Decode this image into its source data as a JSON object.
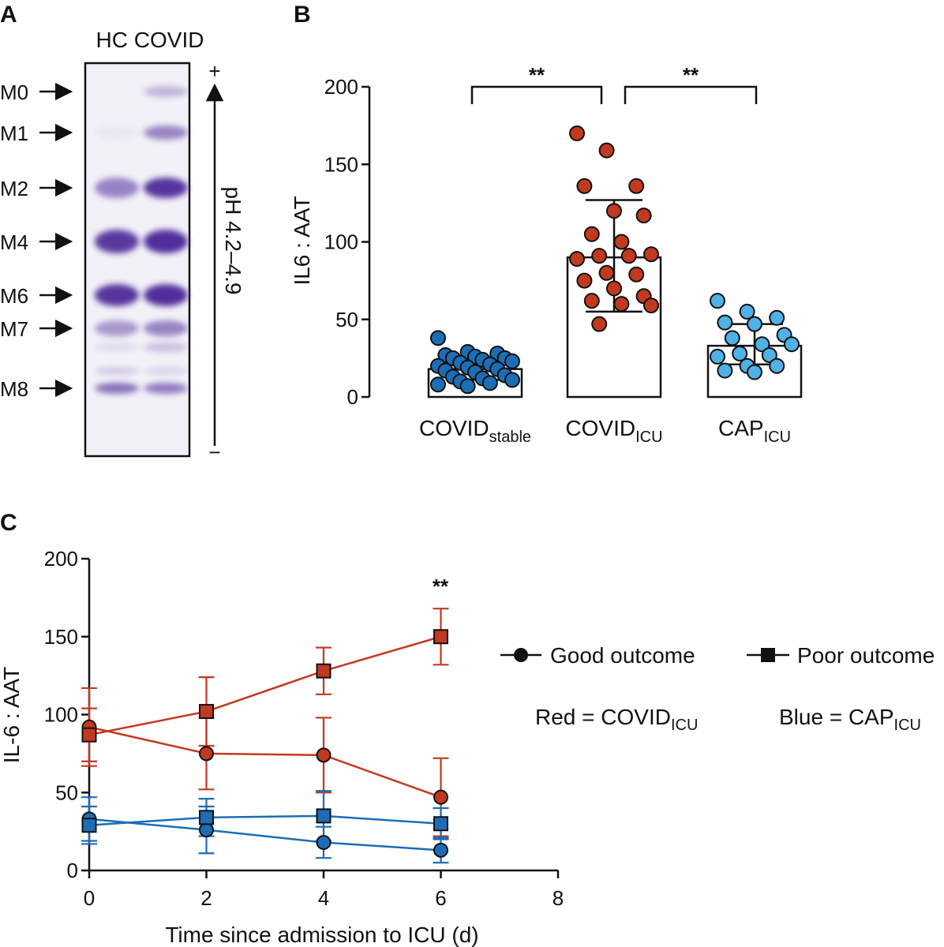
{
  "colors": {
    "red": "#c1391f",
    "blue": "#1c6db6",
    "light_blue": "#4fb1e5",
    "dark_blue": "#1b6eb5",
    "gel_band": "#4d2a99",
    "gel_background": "#f2f0f8",
    "text": "#111111"
  },
  "panel_a": {
    "letter": "A",
    "lane_header": "HC COVID",
    "markers": [
      "M0",
      "M1",
      "M2",
      "M4",
      "M6",
      "M7",
      "M8"
    ],
    "ph_label": "pH 4.2–4.9",
    "plus_sign": "+",
    "minus_sign": "−"
  },
  "panel_b": {
    "letter": "B",
    "significance": [
      {
        "between": [
          "COVID_stable",
          "COVID_ICU"
        ],
        "label": "**"
      },
      {
        "between": [
          "COVID_ICU",
          "CAP_ICU"
        ],
        "label": "**"
      }
    ]
  },
  "panel_c": {
    "letter": "C",
    "significance_label": "**",
    "legend": {
      "good": "Good outcome",
      "poor": "Poor outcome",
      "red_prefix": "Red = COVID",
      "red_sub": "ICU",
      "blue_prefix": "Blue = CAP",
      "blue_sub": "ICU"
    }
  },
  "chart_data": [
    {
      "type": "bar",
      "panel": "B",
      "ylabel": "IL6 : AAT",
      "ylim": [
        0,
        200
      ],
      "yticks": [
        0,
        50,
        100,
        150,
        200
      ],
      "groups": [
        {
          "main": "COVID",
          "sub": "stable",
          "color": "#1b6eb5",
          "mean": 18,
          "sd_low": 11,
          "sd_high": 25,
          "points": [
            38,
            29,
            28,
            27,
            26,
            25,
            25,
            24,
            23,
            22,
            21,
            20,
            19,
            18,
            17,
            16,
            14,
            13,
            12,
            11,
            10,
            9,
            8,
            7
          ]
        },
        {
          "main": "COVID",
          "sub": "ICU",
          "color": "#c1391f",
          "mean": 90,
          "sd_low": 55,
          "sd_high": 127,
          "points": [
            170,
            159,
            136,
            136,
            120,
            117,
            105,
            100,
            92,
            91,
            91,
            89,
            80,
            79,
            75,
            70,
            65,
            62,
            60,
            59,
            47
          ]
        },
        {
          "main": "CAP",
          "sub": "ICU",
          "color": "#4fb1e5",
          "mean": 33,
          "sd_low": 21,
          "sd_high": 47,
          "points": [
            62,
            55,
            51,
            48,
            47,
            40,
            38,
            34,
            34,
            28,
            27,
            26,
            20,
            20,
            17,
            16
          ]
        }
      ]
    },
    {
      "type": "line",
      "panel": "C",
      "xlabel": "Time since admission to ICU (d)",
      "ylabel": "IL-6 : AAT",
      "xlim": [
        0,
        8
      ],
      "ylim": [
        0,
        200
      ],
      "xticks": [
        0,
        2,
        4,
        6,
        8
      ],
      "yticks": [
        0,
        50,
        100,
        150,
        200
      ],
      "series": [
        {
          "name": "COVID ICU - Good outcome",
          "color": "#c1391f",
          "marker": "circle",
          "x": [
            0,
            2,
            4,
            6
          ],
          "y": [
            92,
            75,
            74,
            47
          ],
          "err": [
            25,
            23,
            24,
            25
          ]
        },
        {
          "name": "COVID ICU - Poor outcome",
          "color": "#c1391f",
          "marker": "square",
          "x": [
            0,
            2,
            4,
            6
          ],
          "y": [
            87,
            102,
            128,
            150
          ],
          "err": [
            17,
            22,
            15,
            18
          ]
        },
        {
          "name": "CAP ICU - Good outcome",
          "color": "#1c6db6",
          "marker": "circle",
          "x": [
            0,
            2,
            4,
            6
          ],
          "y": [
            33,
            26,
            18,
            13
          ],
          "err": [
            14,
            15,
            10,
            8
          ]
        },
        {
          "name": "CAP ICU - Poor outcome",
          "color": "#1c6db6",
          "marker": "square",
          "x": [
            0,
            2,
            4,
            6
          ],
          "y": [
            29,
            34,
            35,
            30
          ],
          "err": [
            12,
            12,
            16,
            10
          ]
        }
      ]
    }
  ]
}
